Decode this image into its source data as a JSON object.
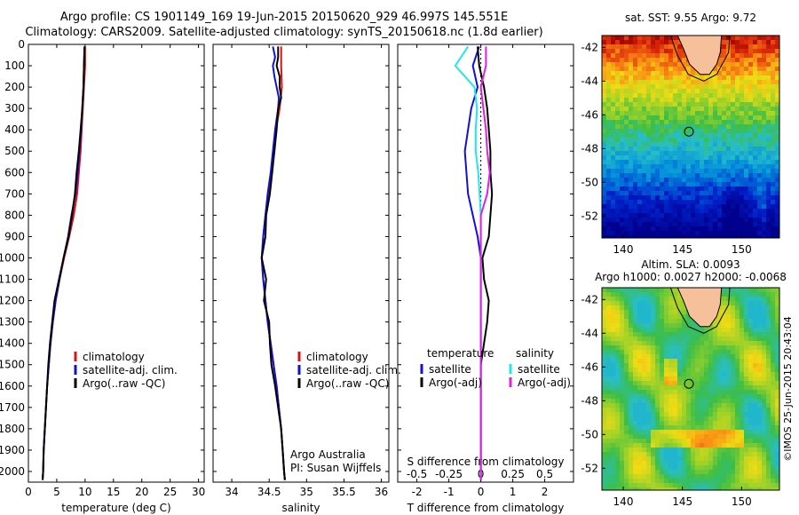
{
  "header": {
    "line1": "Argo profile: CS 1901149_169 19-Jun-2015 20150620_929 46.997S 145.551E",
    "line2": "Climatology: CARS2009. Satellite-adjusted climatology: synTS_20150618.nc (1.8d earlier)"
  },
  "footer_stamp": "©IMOS 25-Jun-2015 20:43:04",
  "colors": {
    "climatology": "#e01010",
    "satellite": "#1010d8",
    "argo": "#000000",
    "salinity_satellite": "#20e8e8",
    "salinity_argo": "#e020e0",
    "land": "#f6c09a"
  },
  "chart_data": [
    {
      "type": "line",
      "id": "temperature",
      "xlabel": "temperature (deg C)",
      "ylabel": "",
      "xlim": [
        0,
        31
      ],
      "ylim": [
        2050,
        0
      ],
      "xticks": [
        "0",
        "5",
        "10",
        "15",
        "20",
        "25",
        "30"
      ],
      "yticks": [
        "0",
        "100",
        "200",
        "300",
        "400",
        "500",
        "600",
        "700",
        "800",
        "900",
        "1000",
        "1100",
        "1200",
        "1300",
        "1400",
        "1500",
        "1600",
        "1700",
        "1800",
        "1900",
        "2000"
      ],
      "legend_placement": "lower-right",
      "series": [
        {
          "name": "climatology",
          "points": [
            [
              10.0,
              10
            ],
            [
              10.0,
              100
            ],
            [
              9.8,
              200
            ],
            [
              9.6,
              300
            ],
            [
              9.4,
              400
            ],
            [
              9.2,
              500
            ],
            [
              8.9,
              600
            ],
            [
              8.6,
              700
            ],
            [
              8.0,
              800
            ],
            [
              7.2,
              900
            ],
            [
              6.3,
              1000
            ],
            [
              5.5,
              1100
            ],
            [
              4.8,
              1200
            ],
            [
              4.3,
              1300
            ],
            [
              3.9,
              1400
            ],
            [
              3.6,
              1500
            ],
            [
              3.3,
              1600
            ],
            [
              3.1,
              1700
            ],
            [
              2.9,
              1800
            ],
            [
              2.7,
              1900
            ],
            [
              2.6,
              2000
            ],
            [
              2.5,
              2040
            ]
          ]
        },
        {
          "name": "satellite-adj. clim.",
          "points": [
            [
              9.9,
              10
            ],
            [
              9.8,
              100
            ],
            [
              9.7,
              200
            ],
            [
              9.5,
              300
            ],
            [
              9.3,
              400
            ],
            [
              9.0,
              500
            ],
            [
              8.7,
              600
            ],
            [
              8.3,
              700
            ],
            [
              7.6,
              800
            ],
            [
              7.0,
              900
            ],
            [
              6.2,
              1000
            ],
            [
              5.5,
              1100
            ],
            [
              4.8,
              1200
            ],
            [
              4.3,
              1300
            ],
            [
              3.9,
              1400
            ],
            [
              3.6,
              1500
            ],
            [
              3.3,
              1600
            ],
            [
              3.1,
              1700
            ],
            [
              2.9,
              1800
            ],
            [
              2.7,
              1900
            ],
            [
              2.6,
              2000
            ],
            [
              2.5,
              2040
            ]
          ]
        },
        {
          "name": "Argo(..raw -QC)",
          "points": [
            [
              9.9,
              10
            ],
            [
              9.8,
              100
            ],
            [
              9.7,
              200
            ],
            [
              9.5,
              300
            ],
            [
              9.2,
              400
            ],
            [
              8.9,
              500
            ],
            [
              8.5,
              600
            ],
            [
              8.2,
              700
            ],
            [
              7.7,
              800
            ],
            [
              7.1,
              900
            ],
            [
              6.2,
              1000
            ],
            [
              5.4,
              1100
            ],
            [
              4.6,
              1200
            ],
            [
              4.2,
              1300
            ],
            [
              3.8,
              1400
            ],
            [
              3.5,
              1500
            ],
            [
              3.3,
              1600
            ],
            [
              3.1,
              1700
            ],
            [
              2.9,
              1800
            ],
            [
              2.7,
              1900
            ],
            [
              2.6,
              2000
            ],
            [
              2.5,
              2040
            ]
          ]
        }
      ]
    },
    {
      "type": "line",
      "id": "salinity",
      "xlabel": "salinity",
      "xlim": [
        33.75,
        36.1
      ],
      "ylim": [
        2050,
        0
      ],
      "xticks": [
        "34",
        "34.5",
        "35",
        "35.5",
        "36"
      ],
      "legend_placement": "lower-right",
      "annotation": [
        "Argo Australia",
        "PI: Susan Wijffels"
      ],
      "series": [
        {
          "name": "climatology",
          "points": [
            [
              34.66,
              10
            ],
            [
              34.66,
              100
            ],
            [
              34.67,
              200
            ],
            [
              34.64,
              300
            ],
            [
              34.59,
              400
            ],
            [
              34.57,
              500
            ],
            [
              34.53,
              600
            ],
            [
              34.49,
              700
            ],
            [
              34.45,
              800
            ],
            [
              34.42,
              900
            ],
            [
              34.4,
              1000
            ],
            [
              34.42,
              1100
            ],
            [
              34.45,
              1200
            ],
            [
              34.48,
              1300
            ],
            [
              34.52,
              1400
            ],
            [
              34.56,
              1500
            ],
            [
              34.6,
              1600
            ],
            [
              34.63,
              1700
            ],
            [
              34.66,
              1800
            ],
            [
              34.68,
              1900
            ],
            [
              34.7,
              2000
            ],
            [
              34.71,
              2040
            ]
          ]
        },
        {
          "name": "satellite-adj. clim.",
          "points": [
            [
              34.55,
              10
            ],
            [
              34.58,
              60
            ],
            [
              34.55,
              100
            ],
            [
              34.57,
              150
            ],
            [
              34.6,
              200
            ],
            [
              34.63,
              250
            ],
            [
              34.62,
              300
            ],
            [
              34.58,
              400
            ],
            [
              34.55,
              500
            ],
            [
              34.52,
              600
            ],
            [
              34.48,
              700
            ],
            [
              34.45,
              800
            ],
            [
              34.42,
              900
            ],
            [
              34.4,
              1000
            ],
            [
              34.42,
              1100
            ],
            [
              34.45,
              1200
            ],
            [
              34.48,
              1300
            ],
            [
              34.52,
              1400
            ],
            [
              34.56,
              1500
            ],
            [
              34.6,
              1600
            ],
            [
              34.63,
              1700
            ],
            [
              34.66,
              1800
            ],
            [
              34.68,
              1900
            ],
            [
              34.7,
              2000
            ],
            [
              34.71,
              2040
            ]
          ]
        },
        {
          "name": "Argo(..raw -QC)",
          "points": [
            [
              34.62,
              10
            ],
            [
              34.62,
              60
            ],
            [
              34.6,
              100
            ],
            [
              34.64,
              150
            ],
            [
              34.64,
              200
            ],
            [
              34.66,
              250
            ],
            [
              34.62,
              300
            ],
            [
              34.6,
              400
            ],
            [
              34.57,
              500
            ],
            [
              34.54,
              600
            ],
            [
              34.51,
              700
            ],
            [
              34.46,
              800
            ],
            [
              34.45,
              900
            ],
            [
              34.4,
              1000
            ],
            [
              34.46,
              1100
            ],
            [
              34.43,
              1200
            ],
            [
              34.5,
              1300
            ],
            [
              34.51,
              1400
            ],
            [
              34.53,
              1500
            ],
            [
              34.58,
              1600
            ],
            [
              34.62,
              1700
            ],
            [
              34.66,
              1800
            ],
            [
              34.68,
              1900
            ],
            [
              34.7,
              2000
            ],
            [
              34.71,
              2040
            ]
          ]
        }
      ]
    },
    {
      "type": "line",
      "id": "difference",
      "xlabel": "T difference from climatology",
      "secondary_xlabel": "S difference from climatology",
      "xlim": [
        -2.6,
        2.9
      ],
      "ylim": [
        2050,
        0
      ],
      "xticks": [
        "-2",
        "-1",
        "0",
        "1",
        "2"
      ],
      "secondary_xticks": [
        "-0.5",
        "-0.25",
        "0",
        "0.25",
        "0.5"
      ],
      "legend_placement": "lower",
      "legend_groups": [
        "temperature",
        "salinity"
      ],
      "series": [
        {
          "name": "temperature satellite",
          "points": [
            [
              -0.05,
              10
            ],
            [
              -0.25,
              100
            ],
            [
              -0.1,
              200
            ],
            [
              -0.3,
              300
            ],
            [
              -0.4,
              400
            ],
            [
              -0.5,
              500
            ],
            [
              -0.45,
              600
            ],
            [
              -0.4,
              700
            ],
            [
              -0.25,
              800
            ],
            [
              -0.1,
              900
            ],
            [
              0.0,
              1000
            ],
            [
              0.0,
              1100
            ],
            [
              0.0,
              1200
            ],
            [
              0.0,
              1300
            ],
            [
              0.0,
              2040
            ]
          ]
        },
        {
          "name": "temperature Argo(-adj)",
          "points": [
            [
              -0.1,
              10
            ],
            [
              -0.05,
              100
            ],
            [
              0.1,
              200
            ],
            [
              0.2,
              300
            ],
            [
              0.25,
              400
            ],
            [
              0.3,
              500
            ],
            [
              0.3,
              600
            ],
            [
              0.35,
              700
            ],
            [
              0.3,
              800
            ],
            [
              0.25,
              900
            ],
            [
              0.05,
              1000
            ],
            [
              0.1,
              1100
            ],
            [
              0.25,
              1200
            ],
            [
              0.2,
              1300
            ],
            [
              0.1,
              1400
            ],
            [
              0.0,
              1500
            ],
            [
              0.0,
              2040
            ]
          ]
        },
        {
          "name": "salinity satellite",
          "points": [
            [
              -0.1,
              10
            ],
            [
              -0.2,
              100
            ],
            [
              -0.05,
              200
            ],
            [
              -0.03,
              300
            ],
            [
              -0.04,
              400
            ],
            [
              -0.04,
              500
            ],
            [
              -0.02,
              600
            ],
            [
              -0.01,
              700
            ],
            [
              0.0,
              800
            ],
            [
              0.0,
              1000
            ],
            [
              0.0,
              1100
            ],
            [
              0.0,
              1200
            ],
            [
              0.0,
              2040
            ]
          ]
        },
        {
          "name": "salinity Argo(-adj)",
          "points": [
            [
              0.04,
              10
            ],
            [
              0.04,
              100
            ],
            [
              0.0,
              200
            ],
            [
              0.02,
              300
            ],
            [
              0.04,
              400
            ],
            [
              0.05,
              500
            ],
            [
              0.07,
              600
            ],
            [
              0.05,
              700
            ],
            [
              0.0,
              800
            ],
            [
              0.0,
              1000
            ],
            [
              0.0,
              2040
            ]
          ]
        }
      ]
    },
    {
      "type": "heatmap",
      "id": "sst-map",
      "title": "sat. SST: 9.55 Argo: 9.72",
      "xlim": [
        138.2,
        153.2
      ],
      "ylim": [
        -53.3,
        -41.3
      ],
      "xticks": [
        "140",
        "145",
        "150"
      ],
      "yticks": [
        "-42",
        "-44",
        "-46",
        "-48",
        "-50",
        "-52"
      ],
      "marker": {
        "lon": 145.551,
        "lat": -46.997
      }
    },
    {
      "type": "heatmap",
      "id": "sla-map",
      "title": "Altim. SLA: 0.0093",
      "subtitle": "Argo h1000: 0.0027 h2000: -0.0068",
      "xlim": [
        138.2,
        153.2
      ],
      "ylim": [
        -53.3,
        -41.3
      ],
      "xticks": [
        "140",
        "145",
        "150"
      ],
      "yticks": [
        "-42",
        "-44",
        "-46",
        "-48",
        "-50",
        "-52"
      ],
      "marker": {
        "lon": 145.551,
        "lat": -46.997
      }
    }
  ]
}
